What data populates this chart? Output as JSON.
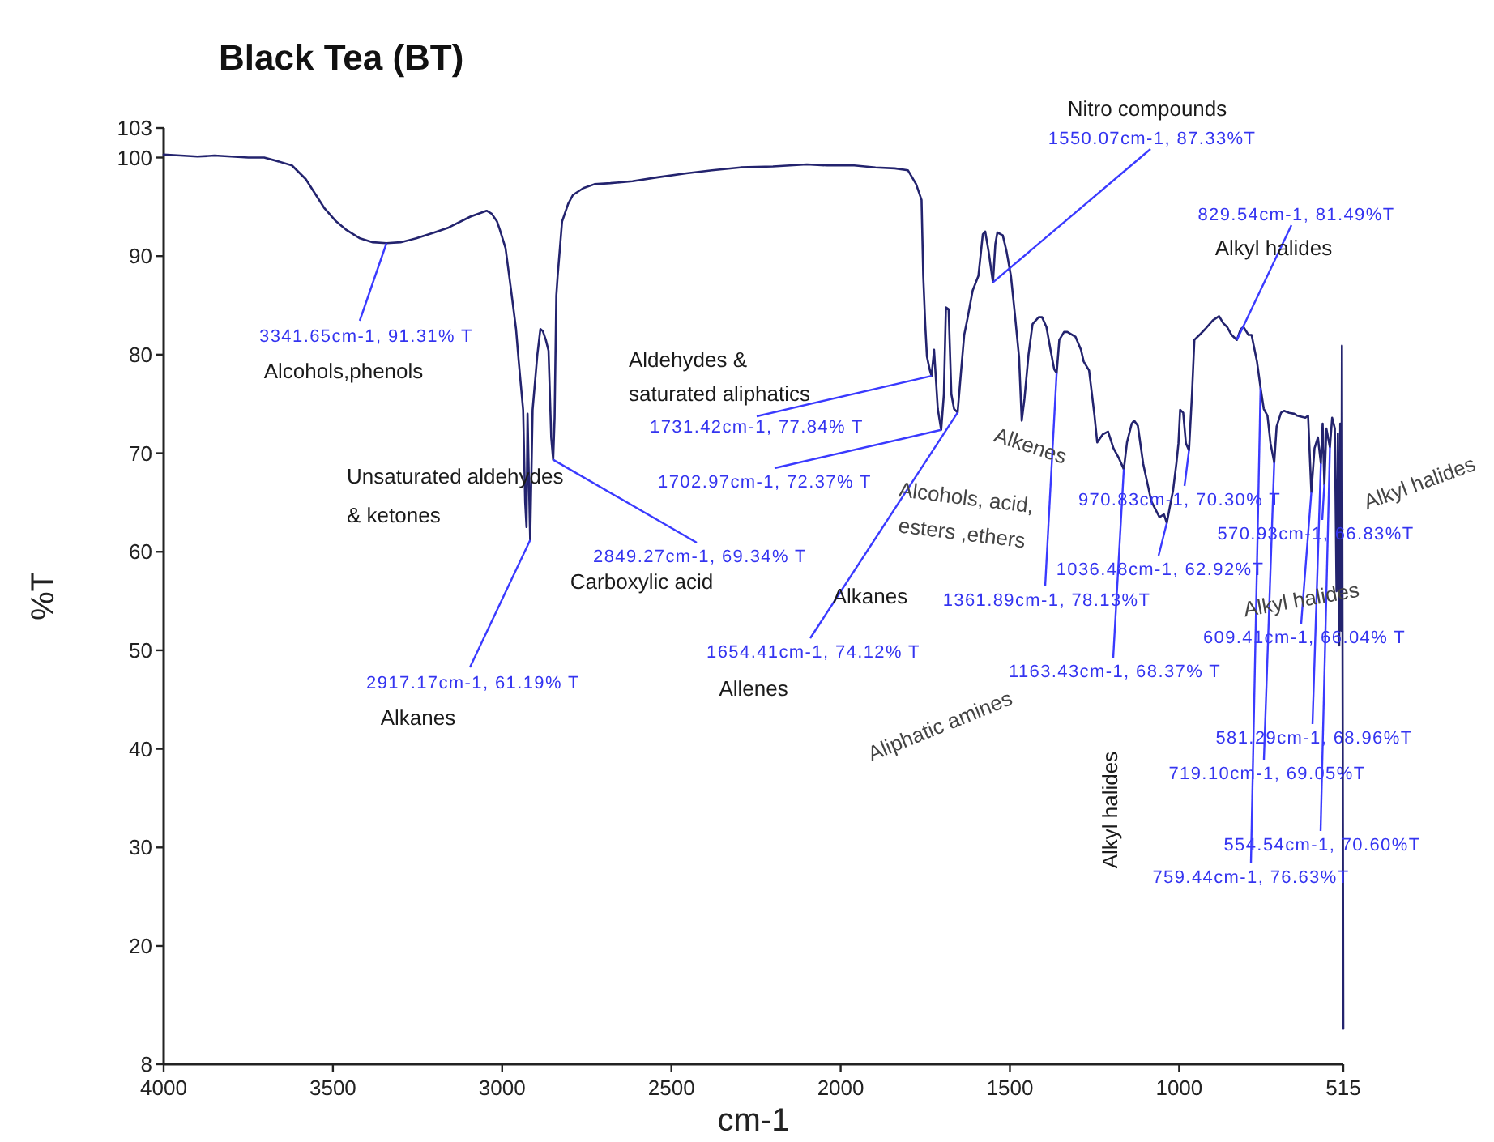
{
  "chart_data": {
    "type": "line",
    "title": "Black Tea (BT)",
    "xlabel": "cm-1",
    "ylabel": "%T",
    "xlim": [
      4000,
      515
    ],
    "xticks": [
      4000,
      3500,
      3000,
      2500,
      2000,
      1500,
      1000,
      515
    ],
    "ylim": [
      8,
      103
    ],
    "yticks": [
      8,
      20,
      30,
      40,
      50,
      60,
      70,
      80,
      90,
      100,
      103
    ],
    "x": [
      4000,
      3950,
      3900,
      3850,
      3800,
      3750,
      3703,
      3660,
      3621,
      3580,
      3526,
      3490,
      3462,
      3420,
      3382,
      3341.65,
      3300,
      3254,
      3200,
      3158,
      3094,
      3046,
      3031,
      3015,
      3007,
      2990,
      2975,
      2959,
      2951,
      2938,
      2932,
      2928,
      2925,
      2917.17,
      2910,
      2896,
      2887,
      2880,
      2871,
      2863,
      2855,
      2849.27,
      2845,
      2840,
      2836,
      2823,
      2805,
      2791,
      2760,
      2727,
      2680,
      2615,
      2540,
      2456,
      2380,
      2296,
      2200,
      2100,
      2040,
      1960,
      1897,
      1840,
      1801,
      1777,
      1761,
      1756,
      1750,
      1745,
      1737,
      1731.42,
      1724,
      1713,
      1702.97,
      1695,
      1689,
      1681,
      1673,
      1665,
      1654.41,
      1645,
      1635,
      1625,
      1610,
      1593,
      1580,
      1573,
      1563,
      1550.07,
      1543,
      1537,
      1521,
      1510,
      1497,
      1485,
      1473,
      1465,
      1457,
      1445,
      1433,
      1415,
      1405,
      1392,
      1380,
      1369,
      1361.89,
      1354,
      1340,
      1330,
      1306,
      1290,
      1282,
      1266,
      1250,
      1242,
      1226,
      1210,
      1194,
      1178,
      1163.43,
      1154,
      1140,
      1133,
      1122,
      1106,
      1082,
      1058,
      1045,
      1036.48,
      1025,
      1018,
      1008,
      1002,
      997,
      988,
      980,
      970.83,
      962,
      955,
      940,
      923,
      900,
      882,
      870,
      858,
      845,
      829.54,
      818,
      810,
      795,
      786,
      770,
      759.44,
      750,
      739,
      730,
      719.1,
      712,
      699,
      690,
      675,
      660,
      651,
      627,
      619,
      609.41,
      600,
      590,
      581.29,
      576,
      570.93,
      565,
      554.54,
      548,
      540,
      535,
      531,
      527,
      524,
      521,
      519,
      515
    ],
    "series": [
      {
        "color": "#23236e",
        "values": [
          100.3,
          100.2,
          100.1,
          100.2,
          100.1,
          100,
          100,
          99.6,
          99.2,
          97.8,
          94.9,
          93.5,
          92.7,
          91.8,
          91.4,
          91.31,
          91.4,
          91.8,
          92.4,
          92.9,
          94,
          94.6,
          94.3,
          93.5,
          92.7,
          90.8,
          86.9,
          82.6,
          79.3,
          74.4,
          65,
          62.5,
          74,
          61.19,
          74.4,
          80,
          82.6,
          82.4,
          81.5,
          80.4,
          71.6,
          69.34,
          73.6,
          86,
          88,
          93.5,
          95.3,
          96.2,
          96.9,
          97.3,
          97.4,
          97.6,
          98,
          98.4,
          98.7,
          99,
          99.1,
          99.3,
          99.2,
          99.2,
          99,
          98.9,
          98.7,
          97.3,
          95.7,
          88,
          83,
          79.8,
          78.5,
          77.84,
          80.5,
          74.5,
          72.37,
          76,
          84.8,
          84.6,
          76,
          74.5,
          74.12,
          78,
          82,
          83.7,
          86.5,
          88,
          92.2,
          92.5,
          90.5,
          87.33,
          91.2,
          92.4,
          92.1,
          90.5,
          88,
          84,
          79.8,
          73.3,
          75.5,
          80,
          83.1,
          83.8,
          83.8,
          82.8,
          80.5,
          78.5,
          78.13,
          81.5,
          82.3,
          82.3,
          81.8,
          80.5,
          79.3,
          78.4,
          73.8,
          71.1,
          71.9,
          72.2,
          70.5,
          69.5,
          68.37,
          71.1,
          73,
          73.3,
          72.8,
          68.9,
          65.1,
          63.5,
          63.8,
          62.92,
          65,
          66.2,
          69,
          71,
          74.4,
          74.1,
          71,
          70.3,
          76,
          81.5,
          82,
          82.6,
          83.5,
          83.9,
          83.2,
          82.8,
          82,
          81.49,
          82.6,
          82.8,
          82,
          82,
          79.3,
          76.63,
          74.5,
          73.8,
          71,
          69.05,
          72.7,
          74.1,
          74.3,
          74.1,
          74,
          73.8,
          73.6,
          73.8,
          66.04,
          70.5,
          71.6,
          68.96,
          73,
          66.83,
          72.5,
          70.6,
          73.6,
          72.5,
          56,
          72,
          50.5,
          73,
          52,
          80.9,
          11.6
        ]
      }
    ],
    "annotations": [
      {
        "text": "3341.65cm-1, 91.31% T",
        "x": 3341.65,
        "y": 91.31
      },
      {
        "text": "2917.17cm-1, 61.19% T",
        "x": 2917.17,
        "y": 61.19
      },
      {
        "text": "2849.27cm-1, 69.34% T",
        "x": 2849.27,
        "y": 69.34
      },
      {
        "text": "1731.42cm-1, 77.84% T",
        "x": 1731.42,
        "y": 77.84
      },
      {
        "text": "1702.97cm-1, 72.37% T",
        "x": 1702.97,
        "y": 72.37
      },
      {
        "text": "1654.41cm-1, 74.12% T",
        "x": 1654.41,
        "y": 74.12
      },
      {
        "text": "1550.07cm-1, 87.33%T",
        "x": 1550.07,
        "y": 87.33
      },
      {
        "text": "1361.89cm-1, 78.13%T",
        "x": 1361.89,
        "y": 78.13
      },
      {
        "text": "1163.43cm-1, 68.37% T",
        "x": 1163.43,
        "y": 68.37
      },
      {
        "text": "1036.48cm-1, 62.92%T",
        "x": 1036.48,
        "y": 62.92
      },
      {
        "text": "970.83cm-1, 70.30% T",
        "x": 970.83,
        "y": 70.3
      },
      {
        "text": "829.54cm-1, 81.49%T",
        "x": 829.54,
        "y": 81.49
      },
      {
        "text": "570.93cm-1, 66.83%T",
        "x": 570.93,
        "y": 66.83
      },
      {
        "text": "609.41cm-1, 66.04% T",
        "x": 609.41,
        "y": 66.04
      },
      {
        "text": "581.29cm-1, 68.96%T",
        "x": 581.29,
        "y": 68.96
      },
      {
        "text": "719.10cm-1, 69.05%T",
        "x": 719.1,
        "y": 69.05
      },
      {
        "text": "554.54cm-1, 70.60%T",
        "x": 554.54,
        "y": 70.6
      },
      {
        "text": "759.44cm-1, 76.63%T",
        "x": 759.44,
        "y": 76.63
      },
      "Alcohols,phenols",
      "Unsaturated aldehydes\n& ketones",
      "Carboxylic acid",
      "Alkanes",
      "Aldehydes &\nsaturated aliphatics",
      "Alkanes",
      "Allenes",
      "Nitro compounds",
      "Alkyl halides",
      "Alkenes",
      "Alcohols, acid,\nesters ,ethers",
      "Aliphatic amines",
      "Alkyl halides",
      "Alkyl halides",
      "Alkyl halides"
    ]
  }
}
